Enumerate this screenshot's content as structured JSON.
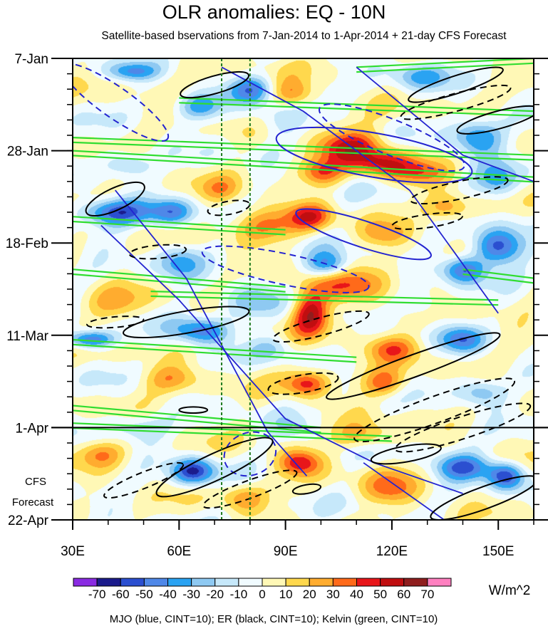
{
  "chart_data": {
    "type": "heatmap",
    "title": "OLR anomalies: EQ - 10N",
    "subtitle": "Satellite-based bservations from 7-Jan-2014 to 1-Apr-2014 + 21-day CFS Forecast",
    "x_axis": {
      "label": "",
      "range_deg_east": [
        30,
        160
      ],
      "ticks": [
        {
          "value": 30,
          "label": "30E"
        },
        {
          "value": 60,
          "label": "60E"
        },
        {
          "value": 90,
          "label": "90E"
        },
        {
          "value": 120,
          "label": "120E"
        },
        {
          "value": 150,
          "label": "150E"
        }
      ]
    },
    "y_axis": {
      "label": "",
      "range_days_from_7jan": [
        0,
        105
      ],
      "direction": "time increases downward",
      "ticks": [
        {
          "value": 0,
          "label": "7-Jan"
        },
        {
          "value": 21,
          "label": "28-Jan"
        },
        {
          "value": 42,
          "label": "18-Feb"
        },
        {
          "value": 63,
          "label": "11-Mar"
        },
        {
          "value": 84,
          "label": "1-Apr"
        },
        {
          "value": 105,
          "label": "22-Apr"
        }
      ]
    },
    "forecast": {
      "start_day": 84,
      "label_line1": "CFS",
      "label_line2": "Forecast"
    },
    "reference_lines_deg_east": [
      72,
      80
    ],
    "colorbar": {
      "units": "W/m^2",
      "levels": [
        "-70",
        "-60",
        "-50",
        "-40",
        "-30",
        "-20",
        "-10",
        "0",
        "10",
        "20",
        "30",
        "40",
        "50",
        "60",
        "70"
      ],
      "colors": [
        "#8a2be2",
        "#1b1b8c",
        "#2b4fd0",
        "#4f88e8",
        "#2aa3f2",
        "#8ec9f2",
        "#c6e8fa",
        "#f0fbff",
        "#fff8b6",
        "#ffd84d",
        "#ffac2f",
        "#ff6a1a",
        "#e8161a",
        "#c00e10",
        "#8f1e1e",
        "#ff80c0"
      ]
    },
    "anomaly_field": {
      "description": "OLR anomaly blobs (center lon deg E, center day, radius lon, radius day, value W/m^2)",
      "blobs": [
        [
          47,
          3,
          7,
          2,
          -35
        ],
        [
          80,
          7,
          6,
          3,
          -40
        ],
        [
          92,
          8,
          6,
          3,
          30
        ],
        [
          128,
          4,
          8,
          3,
          -30
        ],
        [
          66,
          11,
          6,
          3,
          -35
        ],
        [
          88,
          14,
          8,
          4,
          -20
        ],
        [
          108,
          20,
          10,
          4,
          50
        ],
        [
          118,
          24,
          8,
          3,
          40
        ],
        [
          100,
          26,
          6,
          3,
          35
        ],
        [
          128,
          26,
          8,
          3,
          30
        ],
        [
          144,
          18,
          7,
          4,
          -45
        ],
        [
          150,
          28,
          6,
          4,
          -35
        ],
        [
          42,
          35,
          10,
          3,
          -55
        ],
        [
          58,
          35,
          6,
          3,
          -40
        ],
        [
          84,
          38,
          10,
          4,
          30
        ],
        [
          97,
          36,
          6,
          3,
          40
        ],
        [
          118,
          40,
          7,
          3,
          25
        ],
        [
          150,
          43,
          7,
          4,
          -60
        ],
        [
          140,
          48,
          6,
          3,
          -50
        ],
        [
          102,
          47,
          6,
          3,
          -45
        ],
        [
          108,
          52,
          12,
          4,
          35
        ],
        [
          80,
          55,
          8,
          4,
          -25
        ],
        [
          97,
          58,
          5,
          5,
          55
        ],
        [
          66,
          62,
          8,
          3,
          -50
        ],
        [
          35,
          64,
          7,
          2,
          -55
        ],
        [
          86,
          66,
          6,
          3,
          -20
        ],
        [
          120,
          66,
          8,
          3,
          35
        ],
        [
          140,
          64,
          6,
          3,
          -40
        ],
        [
          58,
          73,
          8,
          3,
          25
        ],
        [
          96,
          74,
          6,
          3,
          45
        ],
        [
          118,
          74,
          6,
          3,
          35
        ],
        [
          145,
          76,
          6,
          3,
          -30
        ],
        [
          38,
          90,
          6,
          3,
          25
        ],
        [
          64,
          94,
          6,
          3,
          -60
        ],
        [
          94,
          92,
          6,
          3,
          45
        ],
        [
          140,
          93,
          8,
          3,
          -50
        ],
        [
          152,
          95,
          5,
          3,
          -55
        ],
        [
          120,
          98,
          8,
          4,
          30
        ],
        [
          78,
          100,
          6,
          3,
          25
        ],
        [
          42,
          56,
          8,
          4,
          20
        ],
        [
          128,
          56,
          6,
          3,
          -20
        ],
        [
          60,
          46,
          6,
          4,
          -30
        ],
        [
          48,
          84,
          8,
          3,
          -20
        ],
        [
          112,
          86,
          8,
          3,
          25
        ],
        [
          72,
          30,
          6,
          3,
          20
        ],
        [
          45,
          24,
          6,
          3,
          -25
        ],
        [
          136,
          34,
          6,
          3,
          30
        ],
        [
          92,
          84,
          6,
          3,
          -15
        ]
      ]
    },
    "contours": {
      "mjo": {
        "name": "MJO",
        "color": "#2323d0",
        "cint": 10
      },
      "er": {
        "name": "ER",
        "color": "#000000",
        "cint": 10
      },
      "kelvin": {
        "name": "Kelvin",
        "color": "#30dd30",
        "cint": 10
      },
      "mjo_ellipses": [
        [
          42,
          10,
          18,
          3.5,
          35,
          "dashed"
        ],
        [
          120,
          18,
          22,
          4,
          22,
          "dashed"
        ],
        [
          112,
          40,
          20,
          3,
          18,
          "solid"
        ],
        [
          90,
          48,
          24,
          3.5,
          12,
          "dashed"
        ],
        [
          115,
          22,
          28,
          5,
          10,
          "solid"
        ],
        [
          80,
          90,
          6,
          6,
          70,
          "dashed"
        ]
      ],
      "mjo_lines": [
        [
          [
            42,
            30
          ],
          [
            62,
            50
          ],
          [
            85,
            85
          ],
          [
            96,
            95
          ]
        ],
        [
          [
            38,
            38
          ],
          [
            60,
            55
          ],
          [
            90,
            82
          ],
          [
            115,
            92
          ],
          [
            140,
            99
          ]
        ],
        [
          [
            72,
            2
          ],
          [
            95,
            12
          ],
          [
            125,
            30
          ],
          [
            150,
            58
          ]
        ],
        [
          [
            110,
            2
          ],
          [
            140,
            22
          ],
          [
            160,
            28
          ]
        ],
        [
          [
            112,
            92
          ],
          [
            140,
            108
          ]
        ]
      ],
      "er_ellipses": [
        [
          70,
          6,
          10,
          2,
          -16,
          "solid"
        ],
        [
          138,
          6,
          14,
          2,
          -18,
          "solid"
        ],
        [
          138,
          10,
          16,
          2,
          -15,
          "dashed"
        ],
        [
          150,
          14,
          12,
          2,
          -15,
          "solid"
        ],
        [
          42,
          32,
          9,
          2.5,
          -25,
          "solid"
        ],
        [
          74,
          34,
          6,
          1.5,
          -10,
          "dashed"
        ],
        [
          139,
          30,
          14,
          2,
          -12,
          "dashed"
        ],
        [
          130,
          37,
          10,
          1.5,
          -8,
          "dashed"
        ],
        [
          54,
          44,
          8,
          1.5,
          -5,
          "dashed"
        ],
        [
          62,
          60,
          18,
          2.5,
          -10,
          "solid"
        ],
        [
          42,
          60,
          8,
          1.2,
          -5,
          "dashed"
        ],
        [
          100,
          61,
          14,
          2,
          -15,
          "dashed"
        ],
        [
          126,
          70,
          26,
          2.5,
          -20,
          "solid"
        ],
        [
          95,
          74,
          10,
          2,
          -10,
          "dashed"
        ],
        [
          132,
          80,
          24,
          3,
          -20,
          "dashed"
        ],
        [
          140,
          84,
          20,
          2.5,
          -18,
          "dashed"
        ],
        [
          50,
          96,
          12,
          1.8,
          -22,
          "dashed"
        ],
        [
          80,
          98,
          14,
          2,
          -20,
          "dashed"
        ],
        [
          96,
          98,
          4,
          1,
          -10,
          "solid"
        ],
        [
          146,
          100,
          16,
          2.5,
          -20,
          "solid"
        ],
        [
          124,
          90,
          10,
          1.8,
          -10,
          "solid"
        ],
        [
          70,
          93,
          18,
          3,
          -25,
          "solid"
        ],
        [
          64,
          80,
          4,
          0.7,
          0,
          "solid"
        ]
      ],
      "kelvin_lines": [
        [
          [
            60,
            9
          ],
          [
            160,
            12
          ]
        ],
        [
          [
            30,
            18
          ],
          [
            160,
            22
          ]
        ],
        [
          [
            30,
            21
          ],
          [
            160,
            27
          ]
        ],
        [
          [
            30,
            36
          ],
          [
            90,
            39
          ]
        ],
        [
          [
            30,
            48
          ],
          [
            90,
            52
          ]
        ],
        [
          [
            52,
            53
          ],
          [
            150,
            55
          ]
        ],
        [
          [
            30,
            64
          ],
          [
            110,
            68
          ]
        ],
        [
          [
            30,
            79
          ],
          [
            100,
            84
          ]
        ],
        [
          [
            30,
            83
          ],
          [
            120,
            86
          ]
        ],
        [
          [
            140,
            48
          ],
          [
            160,
            50
          ]
        ],
        [
          [
            110,
            2
          ],
          [
            160,
            0
          ]
        ]
      ]
    }
  },
  "footer": {
    "legend_text": "MJO (blue, CINT=10); ER (black, CINT=10); Kelvin (green, CINT=10)"
  }
}
